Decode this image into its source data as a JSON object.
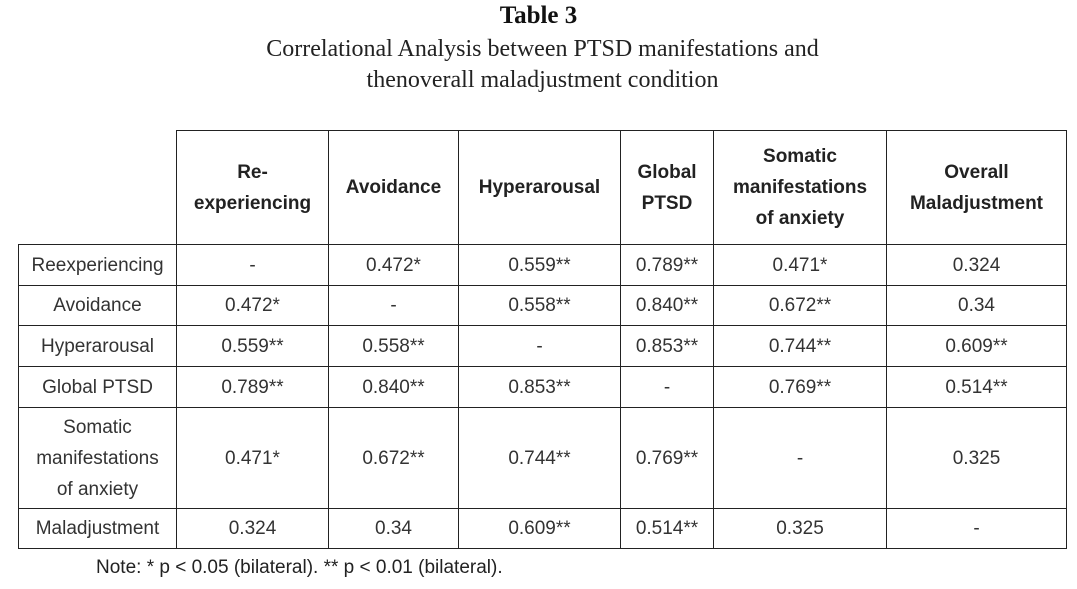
{
  "title": "Table 3",
  "subtitle_line1": "Correlational Analysis between PTSD manifestations and",
  "subtitle_line2": "thenoverall maladjustment condition",
  "columns": [
    {
      "l1": "Re-",
      "l2": "experiencing",
      "l3": ""
    },
    {
      "l1": "Avoidance",
      "l2": "",
      "l3": ""
    },
    {
      "l1": "Hyperarousal",
      "l2": "",
      "l3": ""
    },
    {
      "l1": "Global",
      "l2": "PTSD",
      "l3": ""
    },
    {
      "l1": "Somatic",
      "l2": "manifestations",
      "l3": "of anxiety"
    },
    {
      "l1": "Overall",
      "l2": "Maladjustment",
      "l3": ""
    }
  ],
  "rows": [
    {
      "label": [
        "Reexperiencing"
      ],
      "values": [
        "-",
        "0.472*",
        "0.559**",
        "0.789**",
        "0.471*",
        "0.324"
      ]
    },
    {
      "label": [
        "Avoidance"
      ],
      "values": [
        "0.472*",
        "-",
        "0.558**",
        "0.840**",
        "0.672**",
        "0.34"
      ]
    },
    {
      "label": [
        "Hyperarousal"
      ],
      "values": [
        "0.559**",
        "0.558**",
        "-",
        "0.853**",
        "0.744**",
        "0.609**"
      ]
    },
    {
      "label": [
        "Global PTSD"
      ],
      "values": [
        "0.789**",
        "0.840**",
        "0.853**",
        "-",
        "0.769**",
        "0.514**"
      ]
    },
    {
      "label": [
        "Somatic",
        "manifestations",
        "of anxiety"
      ],
      "values": [
        "0.471*",
        "0.672**",
        "0.744**",
        "0.769**",
        "-",
        "0.325"
      ]
    },
    {
      "label": [
        "Maladjustment"
      ],
      "values": [
        "0.324",
        "0.34",
        "0.609**",
        "0.514**",
        "0.325",
        "-"
      ]
    }
  ],
  "note": "Note: * p < 0.05 (bilateral). ** p < 0.01 (bilateral)."
}
